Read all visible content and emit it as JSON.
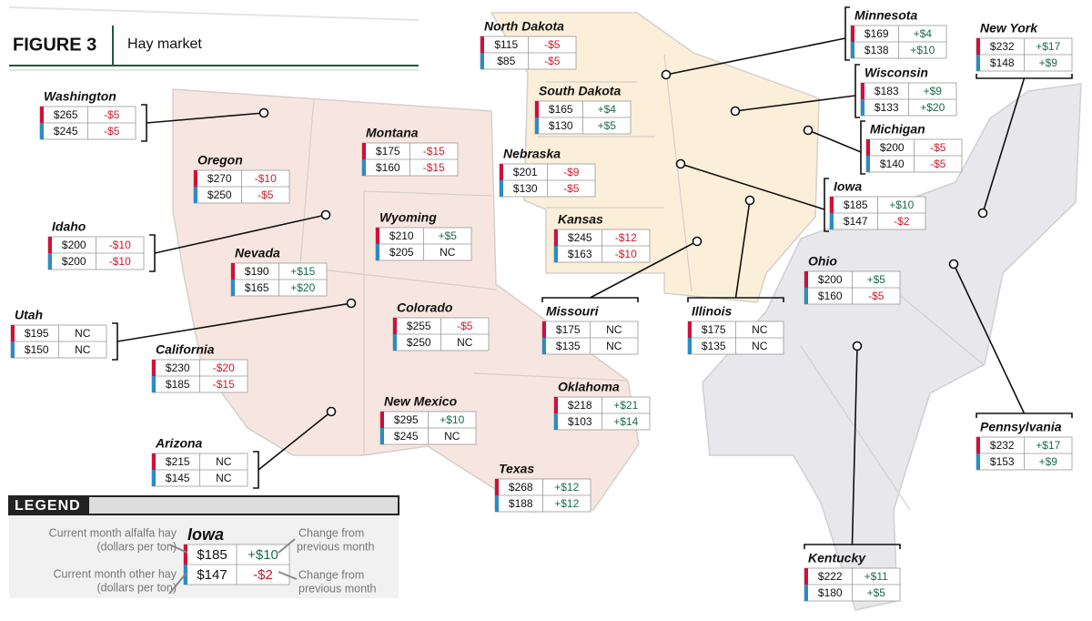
{
  "header": {
    "figure": "FIGURE 3",
    "title": "Hay market"
  },
  "states": [
    {
      "name": "Washington",
      "alfalfa": "$265",
      "alfalfa_change": "-$5",
      "other": "$245",
      "other_change": "-$5"
    },
    {
      "name": "Oregon",
      "alfalfa": "$270",
      "alfalfa_change": "-$10",
      "other": "$250",
      "other_change": "-$5"
    },
    {
      "name": "Montana",
      "alfalfa": "$175",
      "alfalfa_change": "-$15",
      "other": "$160",
      "other_change": "-$15"
    },
    {
      "name": "Idaho",
      "alfalfa": "$200",
      "alfalfa_change": "-$10",
      "other": "$200",
      "other_change": "-$10"
    },
    {
      "name": "Wyoming",
      "alfalfa": "$210",
      "alfalfa_change": "+$5",
      "other": "$205",
      "other_change": "NC"
    },
    {
      "name": "Nevada",
      "alfalfa": "$190",
      "alfalfa_change": "+$15",
      "other": "$165",
      "other_change": "+$20"
    },
    {
      "name": "Utah",
      "alfalfa": "$195",
      "alfalfa_change": "NC",
      "other": "$150",
      "other_change": "NC"
    },
    {
      "name": "Colorado",
      "alfalfa": "$255",
      "alfalfa_change": "-$5",
      "other": "$250",
      "other_change": "NC"
    },
    {
      "name": "California",
      "alfalfa": "$230",
      "alfalfa_change": "-$20",
      "other": "$185",
      "other_change": "-$15"
    },
    {
      "name": "Arizona",
      "alfalfa": "$215",
      "alfalfa_change": "NC",
      "other": "$145",
      "other_change": "NC"
    },
    {
      "name": "New Mexico",
      "alfalfa": "$295",
      "alfalfa_change": "+$10",
      "other": "$245",
      "other_change": "NC"
    },
    {
      "name": "Oklahoma",
      "alfalfa": "$218",
      "alfalfa_change": "+$21",
      "other": "$103",
      "other_change": "+$14"
    },
    {
      "name": "Texas",
      "alfalfa": "$268",
      "alfalfa_change": "+$12",
      "other": "$188",
      "other_change": "+$12"
    },
    {
      "name": "North Dakota",
      "alfalfa": "$115",
      "alfalfa_change": "-$5",
      "other": "$85",
      "other_change": "-$5"
    },
    {
      "name": "South Dakota",
      "alfalfa": "$165",
      "alfalfa_change": "+$4",
      "other": "$130",
      "other_change": "+$5"
    },
    {
      "name": "Nebraska",
      "alfalfa": "$201",
      "alfalfa_change": "-$9",
      "other": "$130",
      "other_change": "-$5"
    },
    {
      "name": "Kansas",
      "alfalfa": "$245",
      "alfalfa_change": "-$12",
      "other": "$163",
      "other_change": "-$10"
    },
    {
      "name": "Missouri",
      "alfalfa": "$175",
      "alfalfa_change": "NC",
      "other": "$135",
      "other_change": "NC"
    },
    {
      "name": "Illinois",
      "alfalfa": "$175",
      "alfalfa_change": "NC",
      "other": "$135",
      "other_change": "NC"
    },
    {
      "name": "Minnesota",
      "alfalfa": "$169",
      "alfalfa_change": "+$4",
      "other": "$138",
      "other_change": "+$10"
    },
    {
      "name": "Wisconsin",
      "alfalfa": "$183",
      "alfalfa_change": "+$9",
      "other": "$133",
      "other_change": "+$20"
    },
    {
      "name": "Michigan",
      "alfalfa": "$200",
      "alfalfa_change": "-$5",
      "other": "$140",
      "other_change": "-$5"
    },
    {
      "name": "Iowa",
      "alfalfa": "$185",
      "alfalfa_change": "+$10",
      "other": "$147",
      "other_change": "-$2"
    },
    {
      "name": "New York",
      "alfalfa": "$232",
      "alfalfa_change": "+$17",
      "other": "$148",
      "other_change": "+$9"
    },
    {
      "name": "Ohio",
      "alfalfa": "$200",
      "alfalfa_change": "+$5",
      "other": "$160",
      "other_change": "-$5"
    },
    {
      "name": "Pennsylvania",
      "alfalfa": "$232",
      "alfalfa_change": "+$17",
      "other": "$153",
      "other_change": "+$9"
    },
    {
      "name": "Kentucky",
      "alfalfa": "$222",
      "alfalfa_change": "+$11",
      "other": "$180",
      "other_change": "+$5"
    }
  ],
  "legend": {
    "title": "LEGEND",
    "example": {
      "name": "Iowa",
      "alfalfa": "$185",
      "alfalfa_change": "+$10",
      "other": "$147",
      "other_change": "-$2"
    },
    "alfalfa_label": [
      "Current month alfalfa hay",
      "(dollars per ton)"
    ],
    "other_label": [
      "Current month other hay",
      "(dollars per ton)"
    ],
    "change_label_1": [
      "Change from",
      "previous month"
    ],
    "change_label_2": [
      "Change from",
      "previous month"
    ]
  }
}
